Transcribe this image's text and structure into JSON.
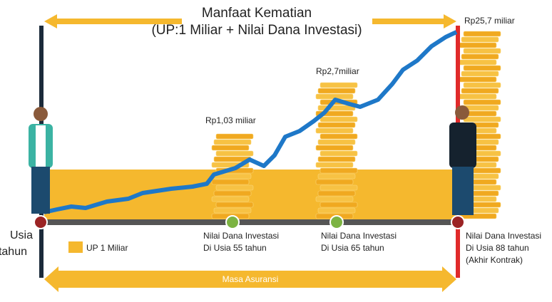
{
  "title": {
    "line1": "Manfaat Kematian",
    "line2": "(UP:1 Miliar + Nilai Dana Investasi)"
  },
  "age_label": {
    "line1": "Usia",
    "line2": "tahun"
  },
  "legend": "UP 1 Miliar",
  "milestones": [
    {
      "amount": "Rp1,03 miliar",
      "lines": [
        "Nilai Dana Investasi",
        "Di Usia 55 tahun"
      ]
    },
    {
      "amount": "Rp2,7miliar",
      "lines": [
        "Nilai Dana Investasi",
        "Di Usia 65 tahun"
      ]
    },
    {
      "amount": "Rp25,7 miliar",
      "lines": [
        "Nilai Dana Investasi",
        "Di Usia 88 tahun",
        "(Akhir Kontrak)"
      ]
    }
  ],
  "period": "Masa Asuransi"
}
